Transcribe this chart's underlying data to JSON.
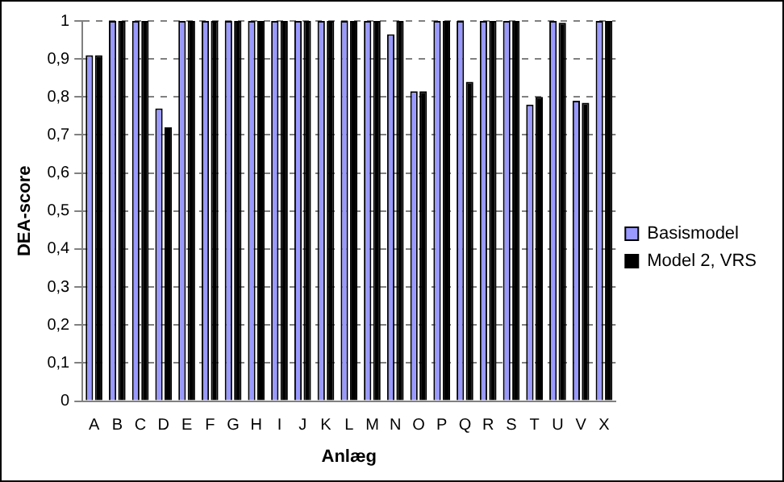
{
  "chart_data": {
    "type": "bar",
    "xlabel": "Anlæg",
    "ylabel": "DEA-score",
    "categories": [
      "A",
      "B",
      "C",
      "D",
      "E",
      "F",
      "G",
      "H",
      "I",
      "J",
      "K",
      "L",
      "M",
      "N",
      "O",
      "P",
      "Q",
      "R",
      "S",
      "T",
      "U",
      "V",
      "X"
    ],
    "series": [
      {
        "name": "Basismodel",
        "color": "#9999ff",
        "values": [
          0.91,
          1,
          1,
          0.77,
          1,
          1,
          1,
          1,
          1,
          1,
          1,
          1,
          1,
          0.965,
          0.815,
          1,
          1,
          1,
          1,
          0.78,
          1,
          0.79,
          1
        ]
      },
      {
        "name": "Model 2, VRS",
        "color": "#000000",
        "values": [
          0.91,
          1,
          1,
          0.72,
          1,
          1,
          1,
          1,
          1,
          1,
          1,
          1,
          1,
          1,
          0.815,
          1,
          0.84,
          1,
          1,
          0.8,
          0.995,
          0.785,
          1
        ]
      }
    ],
    "ylim": [
      0,
      1
    ],
    "yticks": [
      0,
      {
        "value": 0.1,
        "label": "0,1"
      },
      {
        "value": 0.2,
        "label": "0,2"
      },
      {
        "value": 0.3,
        "label": "0,3"
      },
      {
        "value": 0.4,
        "label": "0,4"
      },
      {
        "value": 0.5,
        "label": "0,5"
      },
      {
        "value": 0.6,
        "label": "0,6"
      },
      {
        "value": 0.7,
        "label": "0,7"
      },
      {
        "value": 0.8,
        "label": "0,8"
      },
      {
        "value": 0.9,
        "label": "0,9"
      },
      1
    ],
    "grid": "y",
    "legend": "right"
  }
}
